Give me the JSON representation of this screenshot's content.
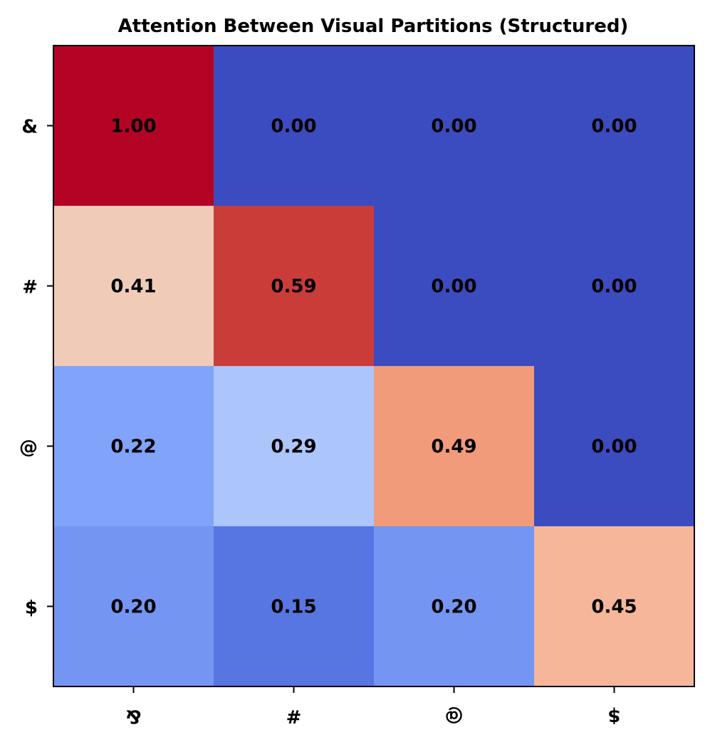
{
  "chart_data": {
    "type": "heatmap",
    "title": "Attention Between Visual Partitions (Structured)",
    "xlabel": "",
    "ylabel": "",
    "x_labels": [
      "&",
      "#",
      "@",
      "$"
    ],
    "y_labels": [
      "&",
      "#",
      "@",
      "$"
    ],
    "values": [
      [
        1.0,
        0.0,
        0.0,
        0.0
      ],
      [
        0.41,
        0.59,
        0.0,
        0.0
      ],
      [
        0.22,
        0.29,
        0.49,
        0.0
      ],
      [
        0.2,
        0.15,
        0.2,
        0.45
      ]
    ],
    "value_format": "0.00",
    "colormap": "coolwarm",
    "vmin": 0.0,
    "vmax": 1.0,
    "grid": false,
    "x_tick_rotation_deg": 180
  }
}
